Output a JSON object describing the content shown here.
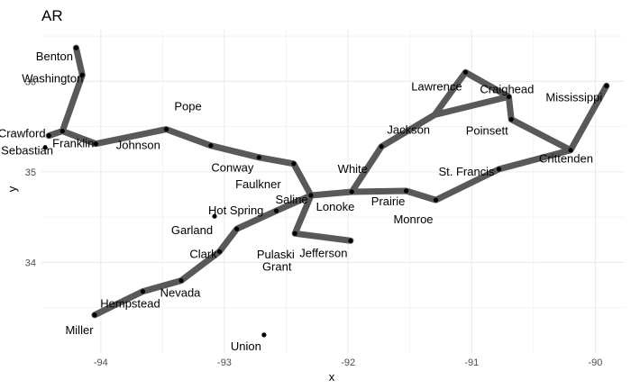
{
  "chart_data": {
    "type": "scatter",
    "title": "AR",
    "xlabel": "x",
    "ylabel": "y",
    "xlim": [
      -94.48,
      -89.77
    ],
    "ylim": [
      33.0,
      36.57
    ],
    "xticks": [
      -94,
      -93,
      -92,
      -91,
      -90
    ],
    "yticks": [
      34,
      35,
      36
    ],
    "x_tick_labels": [
      "-94",
      "-93",
      "-92",
      "-91",
      "-90"
    ],
    "y_tick_labels": [
      "34",
      "35",
      "36"
    ],
    "grid": true,
    "colors": {
      "path": "#595959",
      "point": "#000000",
      "grid": "#ebebeb",
      "text": "#000000"
    },
    "points": [
      {
        "label": "Benton",
        "x": -94.2,
        "y": 36.37
      },
      {
        "label": "Washington",
        "x": -94.15,
        "y": 36.07
      },
      {
        "label": "Crawford",
        "x": -94.42,
        "y": 35.4
      },
      {
        "label": "Sebastian",
        "x": -94.45,
        "y": 35.27
      },
      {
        "label": "Franklin",
        "x": -94.31,
        "y": 35.45
      },
      {
        "label": "Johnson",
        "x": -94.04,
        "y": 35.31
      },
      {
        "label": "Pope",
        "x": -93.47,
        "y": 35.47
      },
      {
        "label": "Conway",
        "x": -93.11,
        "y": 35.29
      },
      {
        "label": "Faulkner",
        "x": -92.72,
        "y": 35.16
      },
      {
        "label": "Lonoke",
        "x": -92.3,
        "y": 34.74
      },
      {
        "label": "Pulaski",
        "x": -92.44,
        "y": 35.09
      },
      {
        "label": "White",
        "x": -91.97,
        "y": 34.78
      },
      {
        "label": "Prairie",
        "x": -91.53,
        "y": 34.79
      },
      {
        "label": "Monroe",
        "x": -91.29,
        "y": 34.69
      },
      {
        "label": "Jackson",
        "x": -91.73,
        "y": 35.28
      },
      {
        "label": "Lawrence",
        "x": -91.05,
        "y": 36.1
      },
      {
        "label": "Craighead",
        "x": -90.7,
        "y": 35.83
      },
      {
        "label": "Poinsett",
        "x": -90.68,
        "y": 35.58
      },
      {
        "label": "Mississippi",
        "x": -89.91,
        "y": 35.95
      },
      {
        "label": "Crittenden",
        "x": -90.2,
        "y": 35.24
      },
      {
        "label": "St. Francis",
        "x": -90.78,
        "y": 35.03
      },
      {
        "label": "Saline",
        "x": -92.58,
        "y": 34.57
      },
      {
        "label": "Garland",
        "x": -93.08,
        "y": 34.51
      },
      {
        "label": "Hot Spring",
        "x": -92.9,
        "y": 34.37
      },
      {
        "label": "Grant",
        "x": -92.43,
        "y": 34.32
      },
      {
        "label": "Jefferson",
        "x": -91.98,
        "y": 34.24
      },
      {
        "label": "Clark",
        "x": -93.04,
        "y": 34.12
      },
      {
        "label": "Nevada",
        "x": -93.35,
        "y": 33.8
      },
      {
        "label": "Hempstead",
        "x": -93.66,
        "y": 33.68
      },
      {
        "label": "Miller",
        "x": -94.05,
        "y": 33.42
      },
      {
        "label": "Union",
        "x": -92.68,
        "y": 33.2
      }
    ],
    "path": [
      {
        "x": -94.2,
        "y": 36.37
      },
      {
        "x": -94.15,
        "y": 36.07
      },
      {
        "x": -94.31,
        "y": 35.45
      },
      {
        "x": -94.42,
        "y": 35.4
      },
      {
        "x": -94.31,
        "y": 35.45
      },
      {
        "x": -94.04,
        "y": 35.31
      },
      {
        "x": -93.47,
        "y": 35.47
      },
      {
        "x": -93.11,
        "y": 35.29
      },
      {
        "x": -92.72,
        "y": 35.16
      },
      {
        "x": -92.44,
        "y": 35.09
      },
      {
        "x": -92.3,
        "y": 34.74
      },
      {
        "x": -91.97,
        "y": 34.78
      },
      {
        "x": -91.53,
        "y": 34.79
      },
      {
        "x": -91.29,
        "y": 34.69
      },
      {
        "x": -90.78,
        "y": 35.03
      },
      {
        "x": -90.2,
        "y": 35.24
      },
      {
        "x": -89.91,
        "y": 35.95
      },
      {
        "x": -90.2,
        "y": 35.24
      },
      {
        "x": -90.68,
        "y": 35.58
      },
      {
        "x": -90.7,
        "y": 35.83
      },
      {
        "x": -91.05,
        "y": 36.1
      },
      {
        "x": -91.3,
        "y": 35.63
      },
      {
        "x": -90.7,
        "y": 35.83
      },
      {
        "x": -91.3,
        "y": 35.63
      },
      {
        "x": -91.73,
        "y": 35.28
      },
      {
        "x": -91.97,
        "y": 34.78
      },
      {
        "x": -92.3,
        "y": 34.74
      },
      {
        "x": -92.58,
        "y": 34.57
      },
      {
        "x": -92.9,
        "y": 34.37
      },
      {
        "x": -93.04,
        "y": 34.12
      },
      {
        "x": -93.35,
        "y": 33.8
      },
      {
        "x": -93.66,
        "y": 33.68
      },
      {
        "x": -94.05,
        "y": 33.42
      }
    ],
    "branch": [
      {
        "x": -92.3,
        "y": 34.74
      },
      {
        "x": -92.43,
        "y": 34.32
      },
      {
        "x": -91.98,
        "y": 34.24
      }
    ]
  }
}
